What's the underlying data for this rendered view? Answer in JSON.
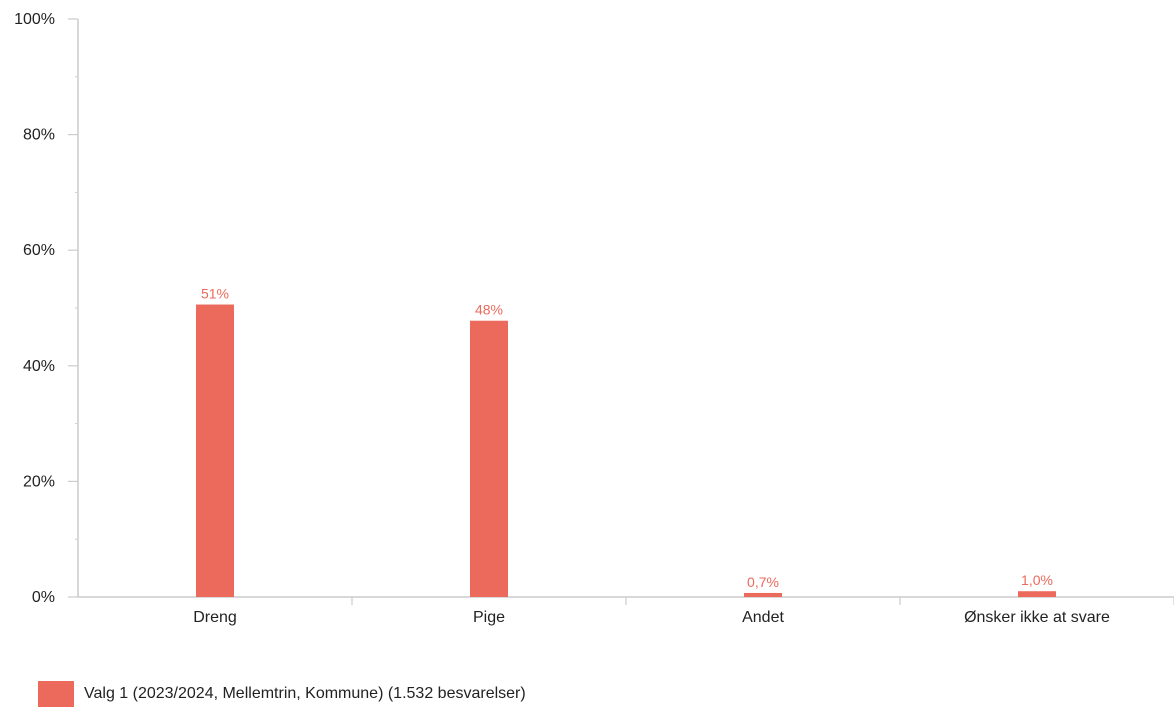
{
  "chart_data": {
    "type": "bar",
    "categories": [
      "Dreng",
      "Pige",
      "Andet",
      "Ønsker ikke at svare"
    ],
    "series": [
      {
        "name": "Valg 1 (2023/2024, Mellemtrin, Kommune) (1.532 besvarelser)",
        "values": [
          50.6,
          47.8,
          0.7,
          1.0
        ],
        "data_labels": [
          "51%",
          "48%",
          "0,7%",
          "1,0%"
        ],
        "color": "#ec6a5c"
      }
    ],
    "ylim": [
      0,
      100
    ],
    "y_ticks": [
      0,
      20,
      40,
      60,
      80,
      100
    ],
    "y_tick_labels": [
      "0%",
      "20%",
      "40%",
      "60%",
      "80%",
      "100%"
    ],
    "grid": false,
    "legend_position": "bottom-left"
  },
  "colors": {
    "bar": "#ec6a5c",
    "axis": "#cccccc",
    "text": "#222222"
  }
}
